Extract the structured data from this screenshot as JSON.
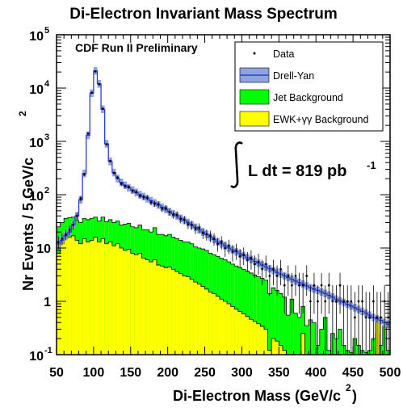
{
  "chart_data": {
    "type": "histogram",
    "title": "Di-Electron Invariant Mass Spectrum",
    "xlabel_main": "Di-Electron Mass (GeV/c",
    "xlabel_sup": "2",
    "xlabel_close": ")",
    "ylabel_main": "Nr Events / 5 GeV/c",
    "ylabel_sup": "2",
    "annotation": "CDF Run II Preliminary",
    "lumi_main": "L dt = 819 pb",
    "lumi_sup": "-1",
    "xlim": [
      50,
      500
    ],
    "ylim": [
      0.1,
      100000
    ],
    "yscale": "log",
    "bin_width": 5,
    "x_ticks": [
      "50",
      "100",
      "150",
      "200",
      "250",
      "300",
      "350",
      "400",
      "450",
      "500"
    ],
    "y_ticks": [
      {
        "base": "10",
        "exp": "-1",
        "value": 0.1
      },
      {
        "base": "1",
        "exp": "",
        "value": 1
      },
      {
        "base": "10",
        "exp": "",
        "value": 10
      },
      {
        "base": "10",
        "exp": "2",
        "value": 100
      },
      {
        "base": "10",
        "exp": "3",
        "value": 1000
      },
      {
        "base": "10",
        "exp": "4",
        "value": 10000
      },
      {
        "base": "10",
        "exp": "5",
        "value": 100000
      }
    ],
    "legend": [
      {
        "label": "Data",
        "kind": "marker"
      },
      {
        "label": "Drell-Yan",
        "kind": "band"
      },
      {
        "label": "Jet Background",
        "kind": "fill"
      },
      {
        "label": "EWK+γγ Background",
        "kind": "fill"
      }
    ],
    "colors": {
      "drell_yan_line": "#2c3fd6",
      "drell_yan_band": "#8fa3de",
      "jet": "#00ff00",
      "ewk": "#ffff00",
      "frame": "#000000"
    },
    "series": [
      {
        "name": "Drell-Yan",
        "x_start": 50,
        "values": [
          12,
          14,
          17,
          20,
          28,
          40,
          80,
          250,
          1300,
          8000,
          21000,
          12000,
          4000,
          900,
          420,
          260,
          200,
          170,
          150,
          135,
          122,
          110,
          100,
          92,
          84,
          77,
          70,
          64,
          58,
          53,
          48,
          44,
          40,
          36,
          33,
          30,
          27,
          24.5,
          22,
          20,
          18,
          16,
          14.5,
          13,
          12,
          11,
          10,
          9.2,
          8.5,
          7.8,
          7.2,
          6.6,
          6.1,
          5.6,
          5.2,
          4.8,
          4.4,
          4.1,
          3.8,
          3.5,
          3.25,
          3,
          2.8,
          2.6,
          2.4,
          2.25,
          2.1,
          1.95,
          1.8,
          1.7,
          1.6,
          1.5,
          1.4,
          1.3,
          1.2,
          1.1,
          1.02,
          0.95,
          0.88,
          0.82,
          0.76,
          0.7,
          0.65,
          0.6,
          0.55,
          0.5,
          0.47,
          0.44,
          0.4,
          0.37,
          0.34
        ]
      },
      {
        "name": "Jet Background",
        "x_start": 50,
        "values": [
          25,
          30,
          36,
          37,
          38,
          33,
          30,
          36,
          34,
          36,
          38,
          32,
          38,
          31,
          34,
          30,
          32,
          27,
          28,
          29,
          25,
          24,
          27,
          22,
          22,
          20,
          24,
          18,
          18,
          17,
          18,
          16,
          15,
          14,
          13,
          13,
          12,
          10.5,
          10,
          9.6,
          9,
          8,
          7.5,
          7,
          6.4,
          6,
          5.5,
          5,
          4.6,
          4.3,
          4,
          3.7,
          3.4,
          3.1,
          2.9,
          2.7,
          2.5,
          1.4,
          1.8,
          1.6,
          1.4,
          1.2,
          0.55,
          1.1,
          0.6,
          0.5,
          0.8,
          0.35,
          0.45,
          0.4,
          0.15,
          0.3,
          0.5,
          0.12,
          0.25,
          0.2,
          0.3,
          0.15,
          0.12,
          0.11,
          0.2,
          0.15,
          0.12,
          0.11,
          0.12,
          0.2,
          0.25,
          0.15,
          0.35,
          0.12
        ]
      },
      {
        "name": "EWK+γγ Background",
        "x_start": 50,
        "values": [
          8,
          12,
          15,
          16,
          17,
          14,
          12,
          15,
          13,
          14,
          16,
          13,
          15,
          12,
          13,
          11,
          12,
          10,
          9,
          9.5,
          8,
          7.5,
          8,
          6.5,
          6,
          5.5,
          6,
          4.8,
          4.6,
          4.3,
          4.4,
          4,
          3.6,
          3.3,
          3,
          2.9,
          2.6,
          2.3,
          2.1,
          1.9,
          1.7,
          1.5,
          1.4,
          1.25,
          1.1,
          1,
          0.9,
          0.8,
          0.72,
          0.65,
          0.58,
          0.52,
          0.46,
          0.42,
          0.38,
          0.34,
          0.3,
          0.12,
          0.2,
          0.18,
          0.15,
          0.12,
          0.1,
          0.1,
          0.1,
          0.1,
          0.25,
          0.1,
          0.1,
          0.1,
          0.1,
          0.1,
          0.1,
          0.1,
          0.1,
          0.1,
          0.1,
          0.1,
          0.1,
          0.1,
          0.1,
          0.1,
          0.1,
          0.1,
          0.1,
          0.1,
          0.5,
          0.1,
          0.1,
          0.1
        ]
      },
      {
        "name": "Data",
        "x_start": 52.5,
        "values": [
          13,
          15,
          18,
          22,
          27,
          40,
          85,
          240,
          1400,
          8200,
          20500,
          11800,
          4100,
          880,
          430,
          255,
          210,
          160,
          145,
          140,
          118,
          112,
          95,
          90,
          88,
          72,
          68,
          66,
          55,
          56,
          47,
          42,
          42,
          35,
          34,
          28,
          27,
          23,
          24,
          19,
          18,
          17,
          15,
          12,
          13,
          10,
          11,
          8.5,
          9,
          7,
          7.5,
          6,
          6.5,
          5,
          5.5,
          4,
          5,
          3,
          4,
          3,
          4,
          2,
          3,
          2,
          3,
          2,
          2,
          3,
          1,
          2,
          1,
          2,
          1,
          2,
          1,
          1,
          2,
          1,
          1,
          1,
          0.5,
          1,
          1,
          0.5,
          0.5,
          1,
          0.5,
          0.5,
          1,
          0.5
        ]
      }
    ]
  }
}
